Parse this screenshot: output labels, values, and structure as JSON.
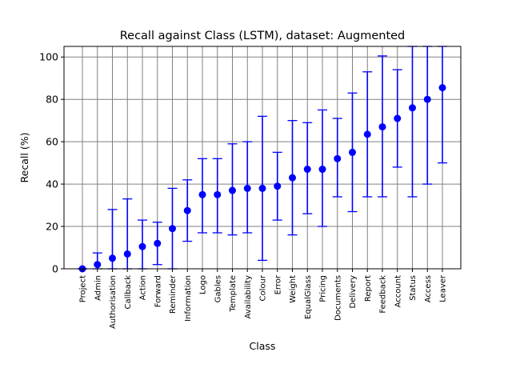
{
  "chart_data": {
    "type": "scatter",
    "title": "Recall against Class (LSTM), dataset: Augmented",
    "xlabel": "Class",
    "ylabel": "Recall (%)",
    "ylim": [
      0,
      105
    ],
    "yticks": [
      "0",
      "20",
      "40",
      "60",
      "80",
      "100"
    ],
    "grid": true,
    "legend": "none",
    "categories": [
      "Project",
      "Admin",
      "Authorisation",
      "Callback",
      "Action",
      "Forward",
      "Reminder",
      "Information",
      "Logo",
      "Gables",
      "Template",
      "Availability",
      "Colour",
      "Error",
      "Weight",
      "EqualGlass",
      "Pricing",
      "Documents",
      "Delivery",
      "Report",
      "Feedback",
      "Account",
      "Status",
      "Access",
      "Leaver"
    ],
    "series": [
      {
        "values": [
          0,
          2,
          5,
          7,
          10.5,
          12,
          19,
          27.5,
          35,
          35,
          37,
          38,
          38,
          39,
          43,
          47,
          47,
          52,
          55,
          63.5,
          67,
          71,
          76,
          80,
          85.5
        ],
        "lower": [
          0,
          0,
          0,
          0,
          0,
          2,
          0,
          13,
          17,
          17,
          16,
          17,
          4,
          23,
          16,
          26,
          20,
          34,
          27,
          34,
          34,
          48,
          34,
          40,
          50
        ],
        "upper": [
          0,
          7.5,
          28,
          33,
          23,
          22,
          38,
          42,
          52,
          52,
          59,
          60,
          72,
          55,
          70,
          69,
          75,
          71,
          83,
          93,
          100.5,
          94,
          105,
          105,
          105
        ]
      }
    ],
    "colors": {
      "marker": "#0000ff",
      "errorbar": "#0000ff",
      "grid": "#808080",
      "axes": "#000000"
    }
  }
}
